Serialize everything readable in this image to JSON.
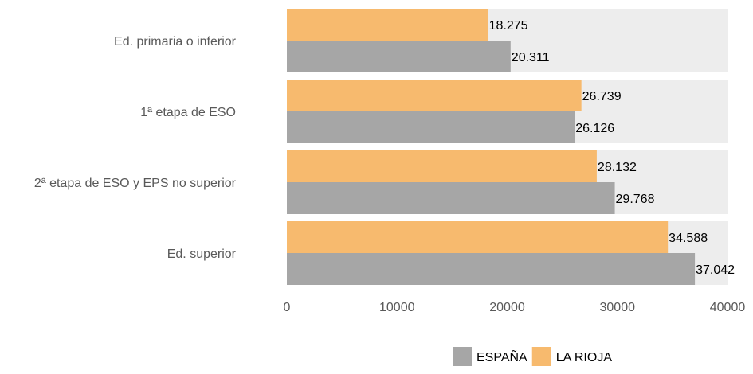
{
  "chart_data": {
    "type": "bar",
    "orientation": "horizontal",
    "categories": [
      "Ed. primaria o inferior",
      "1ª etapa de ESO",
      "2ª etapa de ESO y EPS no superior",
      "Ed. superior"
    ],
    "series": [
      {
        "name": "LA RIOJA",
        "color": "#F7BA6E",
        "values": [
          18275,
          26739,
          28132,
          34588
        ],
        "labels": [
          "18.275",
          "26.739",
          "28.132",
          "34.588"
        ]
      },
      {
        "name": "ESPAÑA",
        "color": "#A6A6A6",
        "values": [
          20311,
          26126,
          29768,
          37042
        ],
        "labels": [
          "20.311",
          "26.126",
          "29.768",
          "37.042"
        ]
      }
    ],
    "xlim": [
      0,
      40000
    ],
    "x_ticks": [
      "0",
      "10000",
      "20000",
      "30000",
      "40000"
    ],
    "grid": false,
    "legend": {
      "position": "bottom-right",
      "order": [
        "ESPAÑA",
        "LA RIOJA"
      ]
    }
  }
}
